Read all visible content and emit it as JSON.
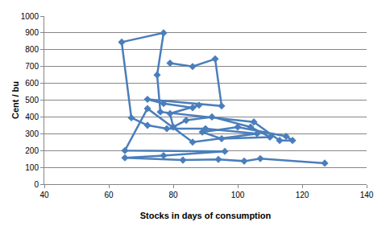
{
  "chart_data": {
    "type": "scatter",
    "xlabel": "Stocks in days of consumption",
    "ylabel": "Cent / bu",
    "x": [
      127,
      107,
      102,
      94,
      83,
      65,
      77,
      96,
      65,
      72,
      86,
      106,
      90,
      78,
      72,
      67,
      64,
      77,
      75,
      76,
      105,
      113,
      117,
      115,
      100,
      89,
      95,
      110,
      104,
      92,
      84,
      80,
      79,
      88,
      86,
      77,
      72,
      95,
      93,
      86,
      79
    ],
    "values": [
      125,
      152,
      137,
      147,
      143,
      157,
      170,
      195,
      200,
      450,
      250,
      300,
      330,
      330,
      350,
      395,
      845,
      900,
      650,
      430,
      370,
      260,
      260,
      285,
      340,
      310,
      270,
      280,
      340,
      400,
      380,
      340,
      420,
      470,
      455,
      480,
      505,
      465,
      745,
      700,
      720
    ],
    "color": "#4a7ebb",
    "marker": "diamond",
    "line_style": "solid",
    "xlim": [
      40,
      140
    ],
    "xticks": [
      40,
      60,
      80,
      100,
      120,
      140
    ],
    "ylim": [
      0,
      1000
    ],
    "yticks": [
      0,
      100,
      200,
      300,
      400,
      500,
      600,
      700,
      800,
      900,
      1000
    ],
    "grid": true
  }
}
